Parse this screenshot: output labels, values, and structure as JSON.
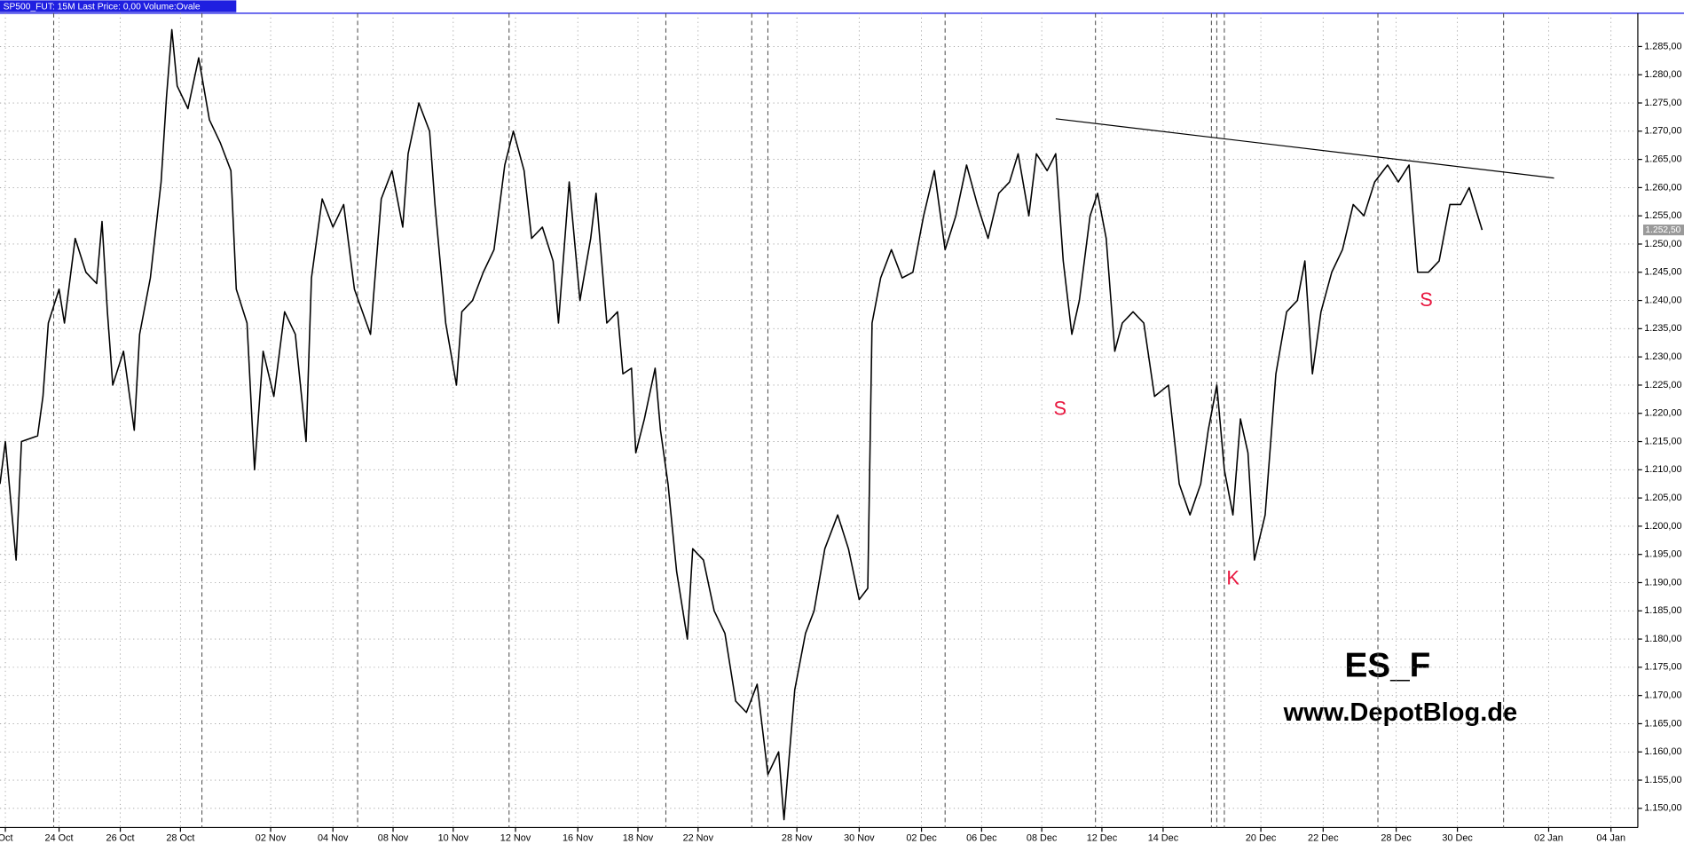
{
  "chart_data": {
    "type": "line",
    "header": "SP500_FUT: 15M Last Price: 0,00 Volume:Ovale",
    "title": "ES_F",
    "subtitle": "www.DepotBlog.de",
    "xlim": [
      0,
      1525
    ],
    "xticks": [
      {
        "value": 5,
        "label": "Oct"
      },
      {
        "value": 55,
        "label": "24 Oct"
      },
      {
        "value": 112,
        "label": "26 Oct"
      },
      {
        "value": 168,
        "label": "28 Oct"
      },
      {
        "value": 252,
        "label": "02 Nov"
      },
      {
        "value": 310,
        "label": "04 Nov"
      },
      {
        "value": 366,
        "label": "08 Nov"
      },
      {
        "value": 422,
        "label": "10 Nov"
      },
      {
        "value": 480,
        "label": "12 Nov"
      },
      {
        "value": 538,
        "label": "16 Nov"
      },
      {
        "value": 594,
        "label": "18 Nov"
      },
      {
        "value": 650,
        "label": "22 Nov"
      },
      {
        "value": 742,
        "label": "28 Nov"
      },
      {
        "value": 800,
        "label": "30 Nov"
      },
      {
        "value": 858,
        "label": "02 Dec"
      },
      {
        "value": 914,
        "label": "06 Dec"
      },
      {
        "value": 970,
        "label": "08 Dec"
      },
      {
        "value": 1026,
        "label": "12 Dec"
      },
      {
        "value": 1083,
        "label": "14 Dec"
      },
      {
        "value": 1174,
        "label": "20 Dec"
      },
      {
        "value": 1232,
        "label": "22 Dec"
      },
      {
        "value": 1300,
        "label": "28 Dec"
      },
      {
        "value": 1357,
        "label": "30 Dec"
      },
      {
        "value": 1442,
        "label": "02 Jan"
      },
      {
        "value": 1500,
        "label": "04 Jan"
      }
    ],
    "ylim": [
      1146.6,
      1290.9
    ],
    "yticks": [
      {
        "value": 1150,
        "label": "1.150,00"
      },
      {
        "value": 1155,
        "label": "1.155,00"
      },
      {
        "value": 1160,
        "label": "1.160,00"
      },
      {
        "value": 1165,
        "label": "1.165,00"
      },
      {
        "value": 1170,
        "label": "1.170,00"
      },
      {
        "value": 1175,
        "label": "1.175,00"
      },
      {
        "value": 1180,
        "label": "1.180,00"
      },
      {
        "value": 1185,
        "label": "1.185,00"
      },
      {
        "value": 1190,
        "label": "1.190,00"
      },
      {
        "value": 1195,
        "label": "1.195,00"
      },
      {
        "value": 1200,
        "label": "1.200,00"
      },
      {
        "value": 1205,
        "label": "1.205,00"
      },
      {
        "value": 1210,
        "label": "1.210,00"
      },
      {
        "value": 1215,
        "label": "1.215,00"
      },
      {
        "value": 1220,
        "label": "1.220,00"
      },
      {
        "value": 1225,
        "label": "1.225,00"
      },
      {
        "value": 1230,
        "label": "1.230,00"
      },
      {
        "value": 1235,
        "label": "1.235,00"
      },
      {
        "value": 1240,
        "label": "1.240,00"
      },
      {
        "value": 1245,
        "label": "1.245,00"
      },
      {
        "value": 1250,
        "label": "1.250,00"
      },
      {
        "value": 1255,
        "label": "1.255,00"
      },
      {
        "value": 1260,
        "label": "1.260,00"
      },
      {
        "value": 1265,
        "label": "1.265,00"
      },
      {
        "value": 1270,
        "label": "1.270,00"
      },
      {
        "value": 1275,
        "label": "1.275,00"
      },
      {
        "value": 1280,
        "label": "1.280,00"
      },
      {
        "value": 1285,
        "label": "1.285,00"
      }
    ],
    "grid": true,
    "last_price": {
      "value": 1252.5,
      "label": "1.252,50"
    },
    "series": [
      {
        "color": "#000000",
        "x": [
          0,
          5,
          15,
          20,
          35,
          40,
          45,
          55,
          60,
          70,
          80,
          90,
          95,
          100,
          105,
          115,
          125,
          130,
          140,
          150,
          155,
          160,
          165,
          175,
          185,
          195,
          205,
          215,
          220,
          230,
          237,
          245,
          255,
          265,
          275,
          285,
          290,
          300,
          310,
          320,
          330,
          345,
          355,
          365,
          375,
          380,
          390,
          400,
          405,
          415,
          425,
          430,
          440,
          450,
          460,
          470,
          478,
          488,
          495,
          505,
          515,
          520,
          530,
          540,
          550,
          555,
          565,
          575,
          580,
          588,
          592,
          600,
          610,
          615,
          622,
          630,
          640,
          645,
          655,
          665,
          675,
          685,
          695,
          705,
          715,
          725,
          730,
          740,
          750,
          758,
          768,
          780,
          790,
          800,
          808,
          812,
          820,
          830,
          840,
          850,
          860,
          870,
          880,
          890,
          900,
          910,
          920,
          930,
          940,
          948,
          958,
          965,
          975,
          983,
          990,
          998,
          1005,
          1015,
          1022,
          1030,
          1038,
          1045,
          1055,
          1065,
          1075,
          1088,
          1098,
          1108,
          1118,
          1125,
          1133,
          1140,
          1148,
          1155,
          1162,
          1168,
          1178,
          1188,
          1198,
          1208,
          1215,
          1222,
          1230,
          1240,
          1250,
          1260,
          1270,
          1280,
          1292,
          1302,
          1312,
          1320,
          1330,
          1340,
          1350,
          1360,
          1368,
          1380
        ],
        "values": [
          1207.5,
          1215,
          1194,
          1215,
          1216,
          1223,
          1236,
          1242,
          1236,
          1251,
          1245,
          1243,
          1254,
          1238,
          1225,
          1231,
          1217,
          1234,
          1244,
          1261,
          1276,
          1288,
          1278,
          1274,
          1283,
          1272,
          1268,
          1263,
          1242,
          1236,
          1210,
          1231,
          1223,
          1238,
          1234,
          1215,
          1244,
          1258,
          1253,
          1257,
          1242,
          1234,
          1258,
          1263,
          1253,
          1266,
          1275,
          1270,
          1257,
          1236,
          1225,
          1238,
          1240,
          1245,
          1249,
          1264,
          1270,
          1263,
          1251,
          1253,
          1247,
          1236,
          1261,
          1240,
          1251,
          1259,
          1236,
          1238,
          1227,
          1228,
          1213,
          1219,
          1228,
          1217,
          1207.5,
          1192,
          1180,
          1196,
          1194,
          1185,
          1181,
          1169,
          1167,
          1172,
          1156,
          1160,
          1148,
          1171,
          1181,
          1185,
          1196,
          1202,
          1196,
          1187,
          1189,
          1236,
          1244,
          1249,
          1244,
          1245,
          1255,
          1263,
          1249,
          1255,
          1264,
          1257,
          1251,
          1259,
          1261,
          1266,
          1255,
          1266,
          1263,
          1266,
          1247,
          1234,
          1240,
          1255,
          1259,
          1251,
          1231,
          1236,
          1238,
          1236,
          1223,
          1225,
          1207.5,
          1202,
          1207.5,
          1217,
          1225,
          1210,
          1202,
          1219,
          1213,
          1194,
          1202,
          1227,
          1238,
          1240,
          1247,
          1227,
          1238,
          1245,
          1249,
          1257,
          1255,
          1261,
          1264,
          1261,
          1264,
          1245,
          1245,
          1247,
          1257,
          1257,
          1260,
          1252.5
        ]
      }
    ],
    "trendline": {
      "x": [
        983,
        1447
      ],
      "values": [
        1272.2,
        1261.7
      ]
    },
    "annotations": [
      "S",
      "K",
      "S"
    ]
  }
}
